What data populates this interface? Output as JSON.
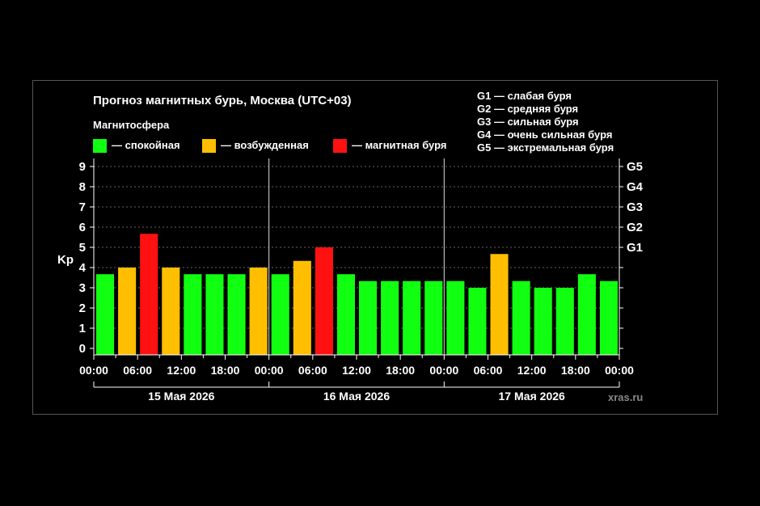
{
  "title": "Прогноз магнитных бурь, Москва (UTC+03)",
  "legend": {
    "title": "Магнитосфера",
    "items": [
      {
        "label": "— спокойная",
        "color": "#11ff11"
      },
      {
        "label": "— возбужденная",
        "color": "#ffbf00"
      },
      {
        "label": "— магнитная буря",
        "color": "#ff1111"
      }
    ]
  },
  "g_scale": [
    {
      "label": "G1 — слабая буря"
    },
    {
      "label": "G2 — средняя буря"
    },
    {
      "label": "G3 — сильная буря"
    },
    {
      "label": "G4 — очень сильная буря"
    },
    {
      "label": "G5 — экстремальная буря"
    }
  ],
  "watermark": "xras.ru",
  "chart_data": {
    "type": "bar",
    "ylabel": "Kp",
    "ylim": [
      0,
      9
    ],
    "yticks": [
      "0",
      "1",
      "2",
      "3",
      "4",
      "5",
      "6",
      "7",
      "8",
      "9"
    ],
    "right_ticks": [
      {
        "label": "G1",
        "value": 5
      },
      {
        "label": "G2",
        "value": 6
      },
      {
        "label": "G3",
        "value": 7
      },
      {
        "label": "G4",
        "value": 8
      },
      {
        "label": "G5",
        "value": 9
      }
    ],
    "xtick_labels": [
      "00:00",
      "06:00",
      "12:00",
      "18:00",
      "00:00",
      "06:00",
      "12:00",
      "18:00",
      "00:00",
      "06:00",
      "12:00",
      "18:00",
      "00:00"
    ],
    "days": [
      "15 Мая 2026",
      "16 Мая 2026",
      "17 Мая 2026"
    ],
    "interval_hours": 3,
    "values": [
      3.67,
      4.0,
      5.67,
      4.0,
      3.67,
      3.67,
      3.67,
      4.0,
      3.67,
      4.33,
      5.0,
      3.67,
      3.33,
      3.33,
      3.33,
      3.33,
      3.33,
      3.0,
      4.67,
      3.33,
      3.0,
      3.0,
      3.67,
      3.33
    ],
    "levels": [
      "quiet",
      "active",
      "storm",
      "active",
      "quiet",
      "quiet",
      "quiet",
      "active",
      "quiet",
      "active",
      "storm",
      "quiet",
      "quiet",
      "quiet",
      "quiet",
      "quiet",
      "quiet",
      "quiet",
      "active",
      "quiet",
      "quiet",
      "quiet",
      "quiet",
      "quiet"
    ],
    "level_colors": {
      "quiet": "#11ff11",
      "active": "#ffbf00",
      "storm": "#ff1111"
    },
    "grid": "dashed horizontal"
  }
}
